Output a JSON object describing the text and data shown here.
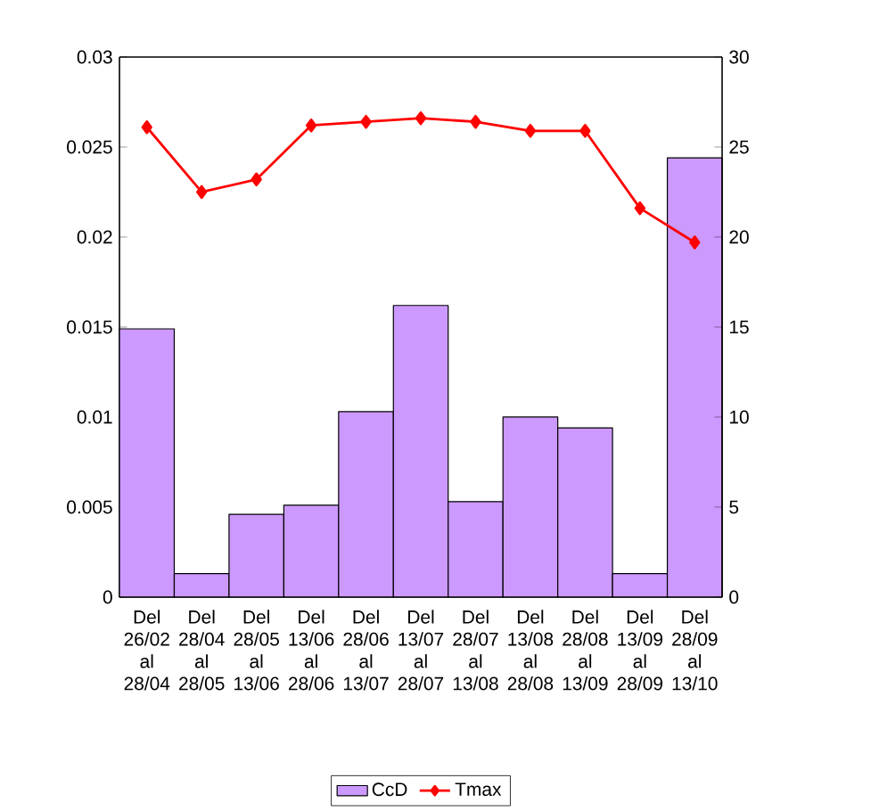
{
  "chart_data": {
    "type": "bar",
    "categories": [
      "Del 26/02 al 28/04",
      "Del 28/04 al 28/05",
      "Del 28/05 al 13/06",
      "Del 13/06 al 28/06",
      "Del 28/06 al 13/07",
      "Del 13/07 al 28/07",
      "Del 28/07 al 13/08",
      "Del 13/08 al 28/08",
      "Del 28/08 al 13/09",
      "Del 13/09 al 28/09",
      "Del 28/09 al 13/10"
    ],
    "series": [
      {
        "name": "CcD",
        "color": "#cc99ff",
        "values": [
          0.0149,
          0.0013,
          0.0046,
          0.0051,
          0.0103,
          0.0162,
          0.0053,
          0.01,
          0.0094,
          0.0013,
          0.0244
        ]
      },
      {
        "name": "Tmax",
        "type": "line",
        "axis": "y2",
        "color": "#ff0000",
        "marker": "diamond",
        "values": [
          26.1,
          22.5,
          23.2,
          26.2,
          26.4,
          26.6,
          26.4,
          25.9,
          25.9,
          21.6,
          19.7
        ]
      }
    ],
    "ylim": [
      0,
      0.03
    ],
    "yticks": [
      0,
      0.005,
      0.01,
      0.015,
      0.02,
      0.025,
      0.03
    ],
    "y2lim": [
      0,
      30
    ],
    "y2ticks": [
      0,
      5,
      10,
      15,
      20,
      25,
      30
    ],
    "legend": "bottom"
  }
}
